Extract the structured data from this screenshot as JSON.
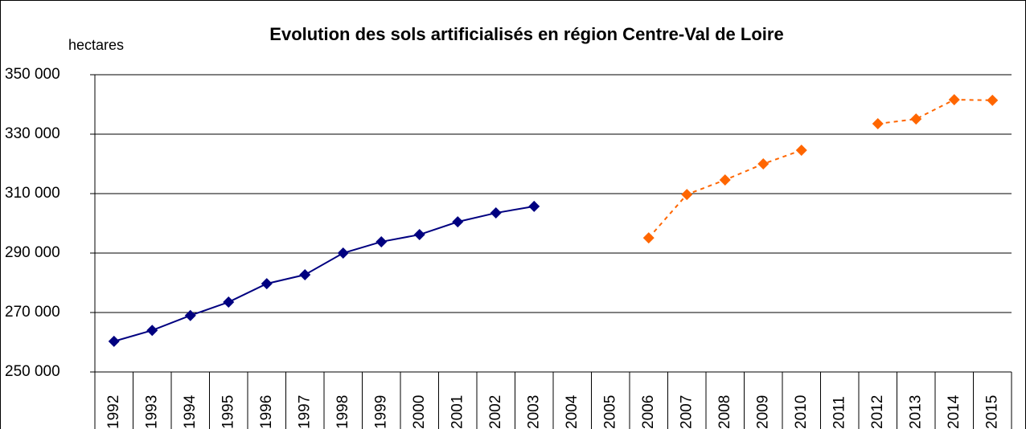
{
  "chart_data": {
    "type": "line",
    "title": "Evolution des sols artificialisés en région Centre-Val de Loire",
    "y_label": "hectares",
    "categories": [
      "1992",
      "1993",
      "1994",
      "1995",
      "1996",
      "1997",
      "1998",
      "1999",
      "2000",
      "2001",
      "2002",
      "2003",
      "2004",
      "2005",
      "2006",
      "2007",
      "2008",
      "2009",
      "2010",
      "2011",
      "2012",
      "2013",
      "2014",
      "2015"
    ],
    "series": [
      {
        "color": "#000080",
        "dashed": false,
        "values": [
          260300,
          264000,
          269000,
          273500,
          279700,
          282700,
          290000,
          293800,
          296200,
          300500,
          303500,
          305700,
          null,
          null,
          null,
          null,
          null,
          null,
          null,
          null,
          null,
          null,
          null,
          null
        ]
      },
      {
        "color": "#ff6600",
        "dashed": true,
        "values": [
          null,
          null,
          null,
          null,
          null,
          null,
          null,
          null,
          null,
          null,
          null,
          null,
          null,
          null,
          295100,
          309700,
          314600,
          320000,
          324600,
          null,
          333500,
          335100,
          341600,
          341400
        ]
      }
    ],
    "ylim": [
      250000,
      350000
    ],
    "yticks": [
      {
        "value": 250000,
        "label": "250 000"
      },
      {
        "value": 270000,
        "label": "270 000"
      },
      {
        "value": 290000,
        "label": "290 000"
      },
      {
        "value": 310000,
        "label": "310 000"
      },
      {
        "value": 330000,
        "label": "330 000"
      },
      {
        "value": 350000,
        "label": "350 000"
      }
    ],
    "grid": true
  }
}
